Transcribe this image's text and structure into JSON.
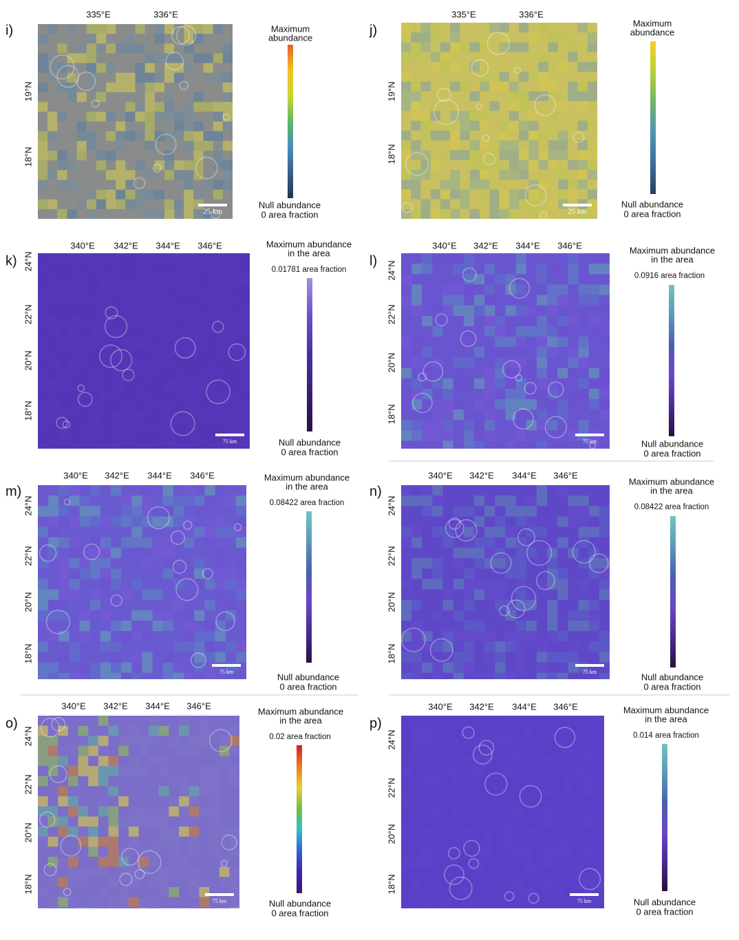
{
  "panels": [
    {
      "label": "i)",
      "lon_labels": [
        "335°E",
        "336°E"
      ],
      "lat_labels": [
        "19°N",
        "18°N"
      ],
      "legend_top": [
        "Maximum",
        "abundance"
      ],
      "legend_bottom": [
        "Null abundance",
        "0 area fraction"
      ],
      "scale_bar": "25 km"
    },
    {
      "label": "j)",
      "lon_labels": [
        "335°E",
        "336°E"
      ],
      "lat_labels": [
        "19°N",
        "18°N"
      ],
      "legend_top": [
        "Maximum",
        "abundance"
      ],
      "legend_bottom": [
        "Null abundance",
        "0 area fraction"
      ],
      "scale_bar": "25 km"
    },
    {
      "label": "k)",
      "lon_labels": [
        "340°E",
        "342°E",
        "344°E",
        "346°E"
      ],
      "lat_labels": [
        "24°N",
        "22°N",
        "20°N",
        "18°N"
      ],
      "legend_top": [
        "Maximum abundance",
        "in the area"
      ],
      "legend_max": "0.01781 area fraction",
      "legend_bottom": [
        "Null abundance",
        "0 area fraction"
      ],
      "scale_bar": "75 km"
    },
    {
      "label": "l)",
      "lon_labels": [
        "340°E",
        "342°E",
        "344°E",
        "346°E"
      ],
      "lat_labels": [
        "24°N",
        "22°N",
        "20°N",
        "18°N"
      ],
      "legend_top": [
        "Maximum abundance",
        "in the area"
      ],
      "legend_max": "0.0916 area fraction",
      "legend_bottom": [
        "Null abundance",
        "0 area fraction"
      ],
      "scale_bar": "75 km"
    },
    {
      "label": "m)",
      "lon_labels": [
        "340°E",
        "342°E",
        "344°E",
        "346°E"
      ],
      "lat_labels": [
        "24°N",
        "22°N",
        "20°N",
        "18°N"
      ],
      "legend_top": [
        "Maximum abundance",
        "in the area"
      ],
      "legend_max": "0.08422 area fraction",
      "legend_bottom": [
        "Null abundance",
        "0 area fraction"
      ],
      "scale_bar": "75 km"
    },
    {
      "label": "n)",
      "lon_labels": [
        "340°E",
        "342°E",
        "344°E",
        "346°E"
      ],
      "lat_labels": [
        "24°N",
        "22°N",
        "20°N",
        "18°N"
      ],
      "legend_top": [
        "Maximum abundance",
        "in the area"
      ],
      "legend_max": "0.08422 area fraction",
      "legend_bottom": [
        "Null abundance",
        "0 area fraction"
      ],
      "scale_bar": "75 km"
    },
    {
      "label": "o)",
      "lon_labels": [
        "340°E",
        "342°E",
        "344°E",
        "346°E"
      ],
      "lat_labels": [
        "24°N",
        "22°N",
        "20°N",
        "18°N"
      ],
      "legend_top": [
        "Maximum abundance",
        "in the area"
      ],
      "legend_max": "0.02 area fraction",
      "legend_bottom": [
        "Null abundance",
        "0 area fraction"
      ],
      "scale_bar": "75 km"
    },
    {
      "label": "p)",
      "lon_labels": [
        "340°E",
        "342°E",
        "344°E",
        "346°E"
      ],
      "lat_labels": [
        "24°N",
        "22°N",
        "20°N",
        "18°N"
      ],
      "legend_top": [
        "Maximum abundance",
        "in the area"
      ],
      "legend_max": "0.014 area fraction",
      "legend_bottom": [
        "Null abundance",
        "0 area fraction"
      ],
      "scale_bar": "75 km"
    }
  ]
}
